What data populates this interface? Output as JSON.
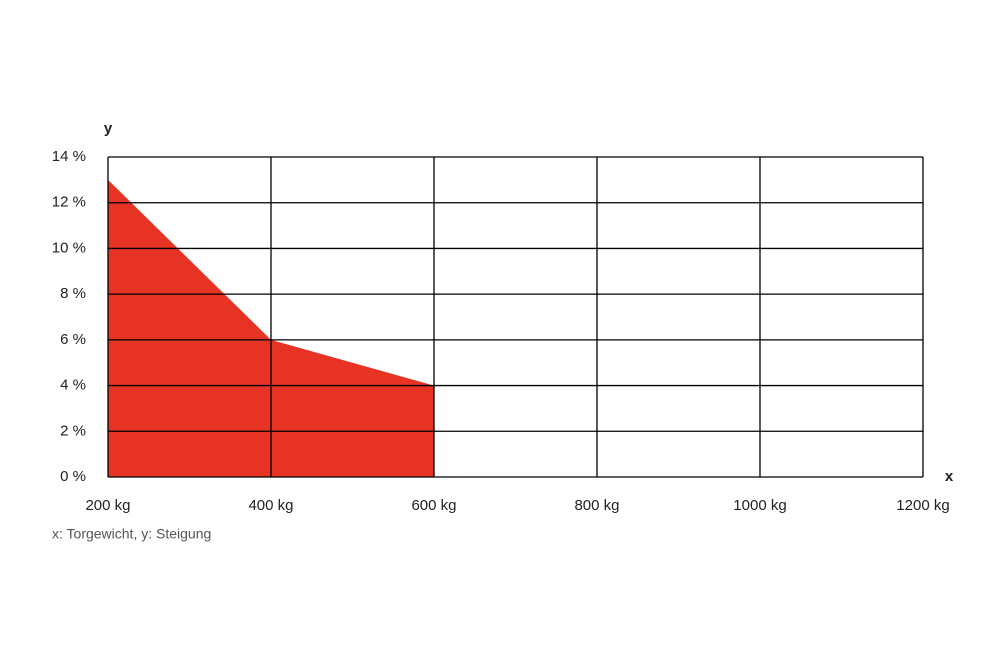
{
  "chart_data": {
    "type": "area",
    "x": [
      200,
      400,
      600
    ],
    "values": [
      13,
      6,
      4
    ],
    "color": "#e63323",
    "xlim": [
      200,
      1200
    ],
    "xticks": [
      {
        "value": 200,
        "label": "200 kg"
      },
      {
        "value": 400,
        "label": "400 kg"
      },
      {
        "value": 600,
        "label": "600 kg"
      },
      {
        "value": 800,
        "label": "800 kg"
      },
      {
        "value": 1000,
        "label": "1000 kg"
      },
      {
        "value": 1200,
        "label": "1200 kg"
      }
    ],
    "ylim": [
      0,
      14
    ],
    "yticks": [
      {
        "value": 0,
        "label": "0 %"
      },
      {
        "value": 2,
        "label": "2 %"
      },
      {
        "value": 4,
        "label": "4 %"
      },
      {
        "value": 6,
        "label": "6 %"
      },
      {
        "value": 8,
        "label": "8 %"
      },
      {
        "value": 10,
        "label": "10 %"
      },
      {
        "value": 12,
        "label": "12 %"
      },
      {
        "value": 14,
        "label": "14 %"
      }
    ],
    "grid": true,
    "x_label": "x",
    "y_label": "y",
    "caption": "x: Torgewicht, y: Steigung"
  }
}
